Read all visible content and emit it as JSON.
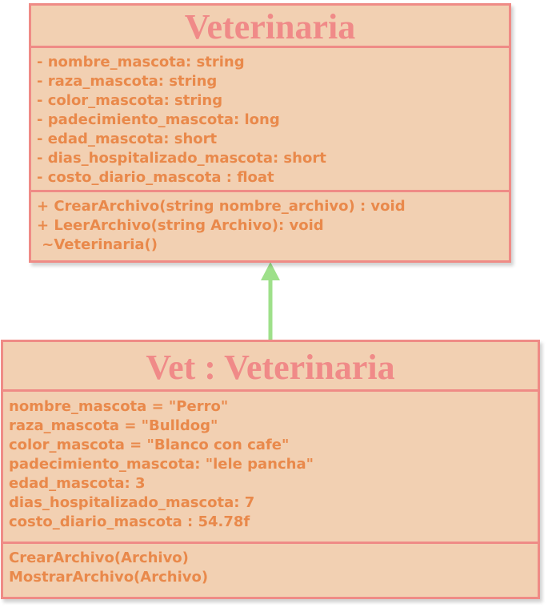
{
  "class_box": {
    "title": "Veterinaria",
    "attributes": [
      "- nombre_mascota: string",
      "- raza_mascota: string",
      "- color_mascota: string",
      "- padecimiento_mascota: long",
      "- edad_mascota: short",
      "- dias_hospitalizado_mascota: short",
      "- costo_diario_mascota : float"
    ],
    "operations": [
      "+ CrearArchivo(string nombre_archivo) : void",
      "+ LeerArchivo(string Archivo): void",
      " ~Veterinaria()"
    ]
  },
  "object_box": {
    "title": "Vet : Veterinaria",
    "attributes": [
      "nombre_mascota = \"Perro\"",
      "raza_mascota = \"Bulldog\"",
      "color_mascota = \"Blanco con cafe\"",
      "padecimiento_mascota: \"lele pancha\"",
      "edad_mascota: 3",
      "dias_hospitalizado_mascota: 7",
      "costo_diario_mascota : 54.78f"
    ],
    "operations": [
      "CrearArchivo(Archivo)",
      "MostrarArchivo(Archivo)"
    ]
  },
  "colors": {
    "box_fill": "#f2d0b2",
    "box_border": "#ef8b86",
    "title_text": "#f08a88",
    "member_text": "#e9894b",
    "arrow": "#9ee08a"
  }
}
